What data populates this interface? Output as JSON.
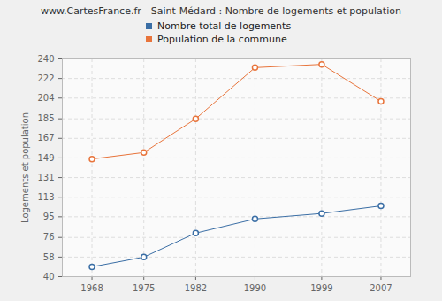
{
  "chart_data": {
    "type": "line",
    "title": "www.CartesFrance.fr - Saint-Médard : Nombre de logements et population",
    "y_label": "Logements et population",
    "x": [
      1968,
      1975,
      1982,
      1990,
      1999,
      2007
    ],
    "series": [
      {
        "name": "Nombre total de logements",
        "color": "#3a6ea5",
        "values": [
          49,
          58,
          80,
          93,
          98,
          105
        ]
      },
      {
        "name": "Population de la commune",
        "color": "#e8743b",
        "values": [
          148,
          154,
          185,
          232,
          235,
          201
        ]
      }
    ],
    "xlim": [
      1964,
      2011
    ],
    "xticks": [
      1968,
      1975,
      1982,
      1990,
      1999,
      2007
    ],
    "ylim": [
      40,
      240
    ],
    "yticks": [
      40,
      58,
      76,
      95,
      113,
      131,
      149,
      167,
      185,
      204,
      222,
      240
    ],
    "grid": true,
    "legend": "top",
    "marker": "circle"
  }
}
